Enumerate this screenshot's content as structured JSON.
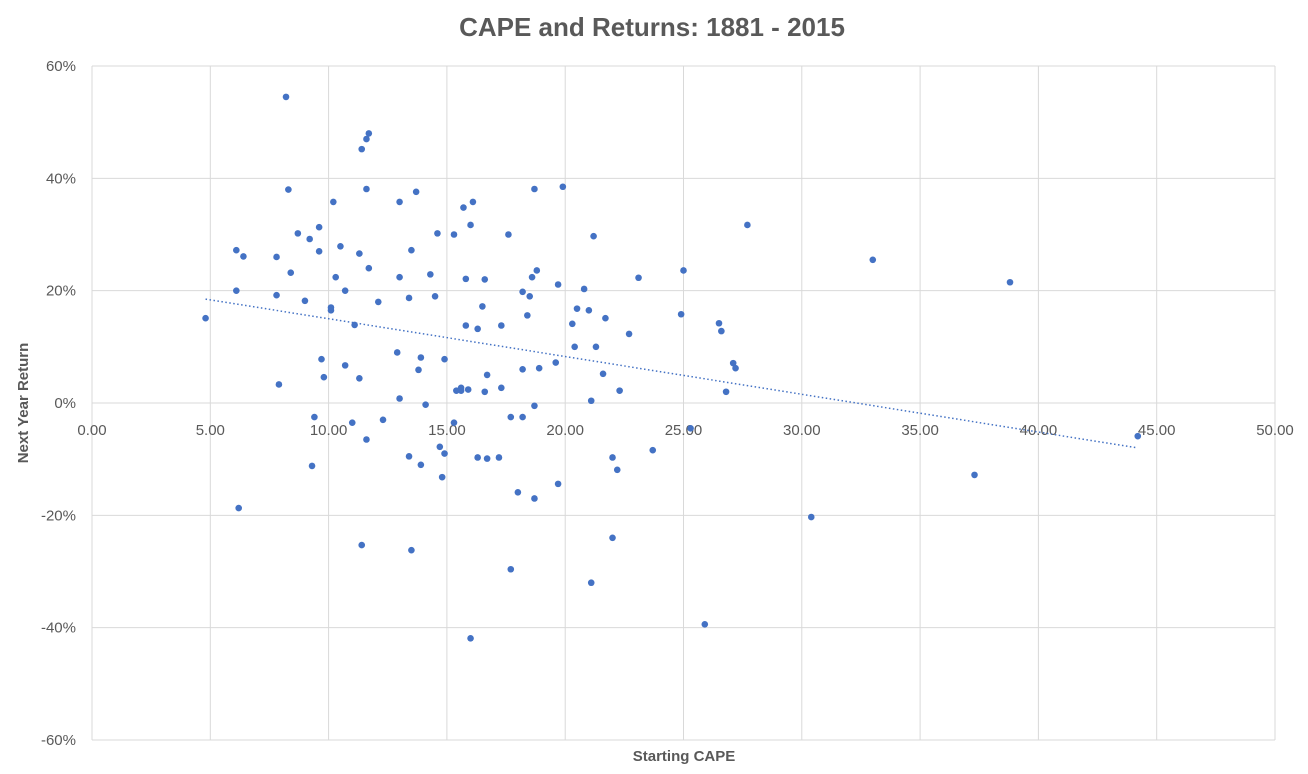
{
  "chart_data": {
    "type": "scatter",
    "title": "CAPE and Returns: 1881 - 2015",
    "xlabel": "Starting CAPE",
    "ylabel": "Next Year Return",
    "xlim": [
      0,
      50
    ],
    "ylim": [
      -0.6,
      0.6
    ],
    "x_ticks": [
      "0.00",
      "5.00",
      "10.00",
      "15.00",
      "20.00",
      "25.00",
      "30.00",
      "35.00",
      "40.00",
      "45.00",
      "50.00"
    ],
    "y_ticks": [
      "60%",
      "40%",
      "20%",
      "0%",
      "-20%",
      "-40%",
      "-60%"
    ],
    "grid": true,
    "trendline": {
      "style": "dotted",
      "x": [
        4.8,
        44.2
      ],
      "y": [
        0.185,
        -0.08
      ]
    },
    "points": [
      [
        4.8,
        0.151
      ],
      [
        6.1,
        0.272
      ],
      [
        6.1,
        0.2
      ],
      [
        6.2,
        -0.187
      ],
      [
        6.4,
        0.261
      ],
      [
        7.8,
        0.26
      ],
      [
        7.8,
        0.192
      ],
      [
        7.9,
        0.033
      ],
      [
        8.2,
        0.545
      ],
      [
        8.3,
        0.38
      ],
      [
        8.4,
        0.232
      ],
      [
        8.7,
        0.302
      ],
      [
        9.0,
        0.182
      ],
      [
        9.2,
        0.292
      ],
      [
        9.3,
        -0.112
      ],
      [
        9.4,
        -0.025
      ],
      [
        9.6,
        0.313
      ],
      [
        9.6,
        0.27
      ],
      [
        9.7,
        0.078
      ],
      [
        9.8,
        0.046
      ],
      [
        10.1,
        0.17
      ],
      [
        10.1,
        0.165
      ],
      [
        10.2,
        0.358
      ],
      [
        10.3,
        0.224
      ],
      [
        10.5,
        0.279
      ],
      [
        10.7,
        0.2
      ],
      [
        10.7,
        0.067
      ],
      [
        11.0,
        -0.035
      ],
      [
        11.1,
        0.139
      ],
      [
        11.3,
        0.266
      ],
      [
        11.3,
        0.044
      ],
      [
        11.4,
        0.452
      ],
      [
        11.4,
        -0.253
      ],
      [
        11.6,
        0.47
      ],
      [
        11.6,
        0.381
      ],
      [
        11.6,
        -0.065
      ],
      [
        11.7,
        0.48
      ],
      [
        11.7,
        0.24
      ],
      [
        12.1,
        0.18
      ],
      [
        12.3,
        -0.03
      ],
      [
        12.9,
        0.09
      ],
      [
        13.0,
        0.008
      ],
      [
        13.0,
        0.358
      ],
      [
        13.0,
        0.224
      ],
      [
        13.4,
        0.187
      ],
      [
        13.4,
        -0.095
      ],
      [
        13.5,
        0.272
      ],
      [
        13.5,
        -0.262
      ],
      [
        13.7,
        0.376
      ],
      [
        13.8,
        0.059
      ],
      [
        13.9,
        0.081
      ],
      [
        13.9,
        -0.11
      ],
      [
        14.1,
        -0.003
      ],
      [
        14.3,
        0.229
      ],
      [
        14.5,
        0.19
      ],
      [
        14.6,
        0.302
      ],
      [
        14.7,
        -0.078
      ],
      [
        14.8,
        -0.132
      ],
      [
        14.9,
        0.078
      ],
      [
        14.9,
        -0.09
      ],
      [
        15.3,
        0.3
      ],
      [
        15.3,
        -0.035
      ],
      [
        15.4,
        0.022
      ],
      [
        15.6,
        0.027
      ],
      [
        15.6,
        0.022
      ],
      [
        15.7,
        0.348
      ],
      [
        15.8,
        0.221
      ],
      [
        15.8,
        0.138
      ],
      [
        15.9,
        0.024
      ],
      [
        16.0,
        0.317
      ],
      [
        16.0,
        -0.419
      ],
      [
        16.1,
        0.358
      ],
      [
        16.3,
        0.132
      ],
      [
        16.3,
        -0.097
      ],
      [
        16.5,
        0.172
      ],
      [
        16.6,
        0.22
      ],
      [
        16.6,
        0.02
      ],
      [
        16.7,
        0.05
      ],
      [
        16.7,
        -0.099
      ],
      [
        17.2,
        -0.097
      ],
      [
        17.3,
        0.138
      ],
      [
        17.3,
        0.027
      ],
      [
        17.6,
        0.3
      ],
      [
        17.7,
        -0.025
      ],
      [
        17.7,
        -0.296
      ],
      [
        18.0,
        -0.159
      ],
      [
        18.2,
        0.198
      ],
      [
        18.2,
        0.06
      ],
      [
        18.2,
        -0.025
      ],
      [
        18.4,
        0.156
      ],
      [
        18.5,
        0.19
      ],
      [
        18.6,
        0.224
      ],
      [
        18.7,
        0.381
      ],
      [
        18.7,
        -0.005
      ],
      [
        18.7,
        -0.17
      ],
      [
        18.8,
        0.236
      ],
      [
        18.9,
        0.062
      ],
      [
        19.6,
        0.072
      ],
      [
        19.7,
        0.211
      ],
      [
        19.7,
        -0.144
      ],
      [
        19.9,
        0.385
      ],
      [
        20.3,
        0.141
      ],
      [
        20.4,
        0.1
      ],
      [
        20.5,
        0.168
      ],
      [
        20.8,
        0.203
      ],
      [
        21.0,
        0.165
      ],
      [
        21.1,
        0.004
      ],
      [
        21.1,
        -0.32
      ],
      [
        21.2,
        0.297
      ],
      [
        21.3,
        0.1
      ],
      [
        21.6,
        0.052
      ],
      [
        21.7,
        0.151
      ],
      [
        22.0,
        -0.097
      ],
      [
        22.0,
        -0.24
      ],
      [
        22.2,
        -0.119
      ],
      [
        22.3,
        0.022
      ],
      [
        22.7,
        0.123
      ],
      [
        23.1,
        0.223
      ],
      [
        23.7,
        -0.084
      ],
      [
        24.9,
        0.158
      ],
      [
        25.0,
        0.236
      ],
      [
        25.3,
        -0.045
      ],
      [
        25.9,
        -0.394
      ],
      [
        26.5,
        0.142
      ],
      [
        26.6,
        0.128
      ],
      [
        26.8,
        0.02
      ],
      [
        27.1,
        0.071
      ],
      [
        27.2,
        0.062
      ],
      [
        27.7,
        0.317
      ],
      [
        30.4,
        -0.203
      ],
      [
        33.0,
        0.255
      ],
      [
        37.3,
        -0.128
      ],
      [
        38.8,
        0.215
      ],
      [
        44.2,
        -0.059
      ]
    ]
  }
}
